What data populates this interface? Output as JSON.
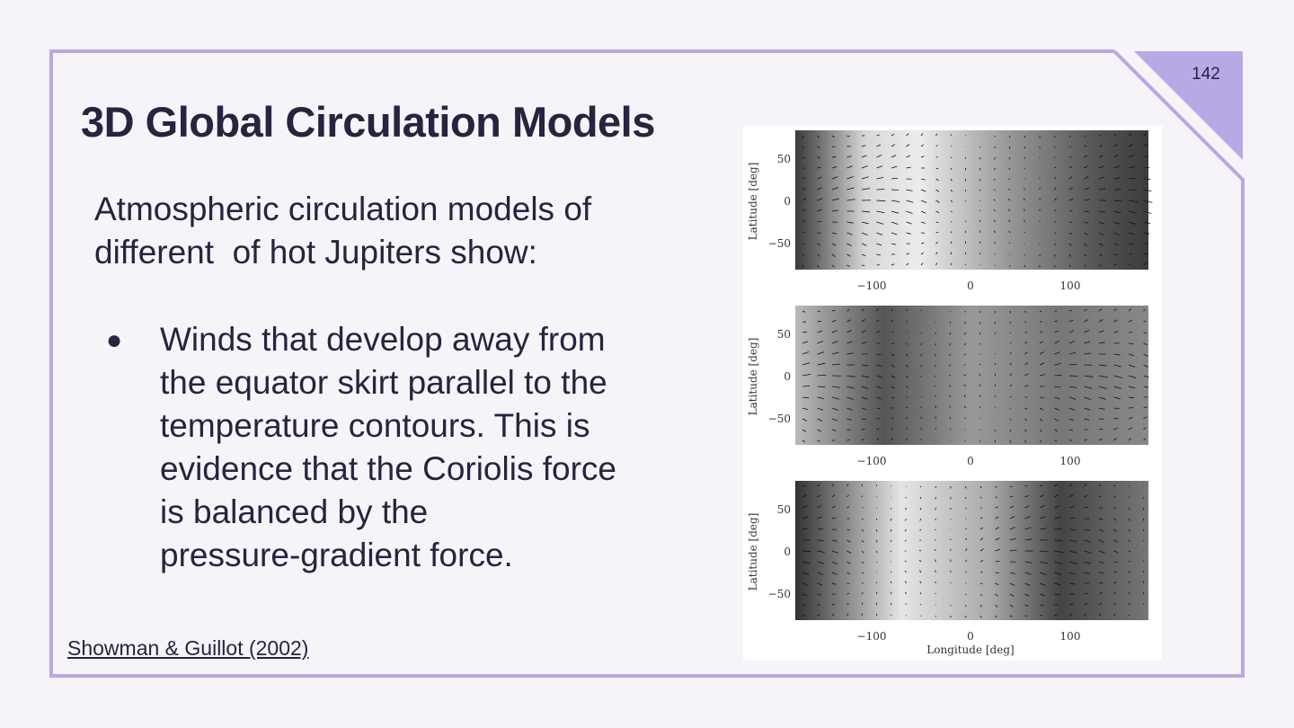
{
  "page_number": "142",
  "title": "3D Global Circulation Models",
  "intro": [
    "Atmospheric circulation models of",
    "different  of hot Jupiters show:"
  ],
  "bullet": [
    "Winds that develop away from",
    "the equator skirt parallel to the",
    "temperature contours. This is",
    "evidence that the Coriolis force",
    "is balanced by the",
    "pressure-gradient force."
  ],
  "citation": "Showman & Guillot (2002)",
  "figure": {
    "panels": [
      {
        "y_label": "Latitude [deg]",
        "y_ticks": [
          "50",
          "0",
          "−50"
        ],
        "x_ticks": [
          "−100",
          "0",
          "100"
        ]
      },
      {
        "y_label": "Latitude [deg]",
        "y_ticks": [
          "50",
          "0",
          "−50"
        ],
        "x_ticks": [
          "−100",
          "0",
          "100"
        ]
      },
      {
        "y_label": "Latitude [deg]",
        "y_ticks": [
          "50",
          "0",
          "−50"
        ],
        "x_ticks": [
          "−100",
          "0",
          "100"
        ]
      }
    ],
    "x_label": "Longitude [deg]"
  }
}
